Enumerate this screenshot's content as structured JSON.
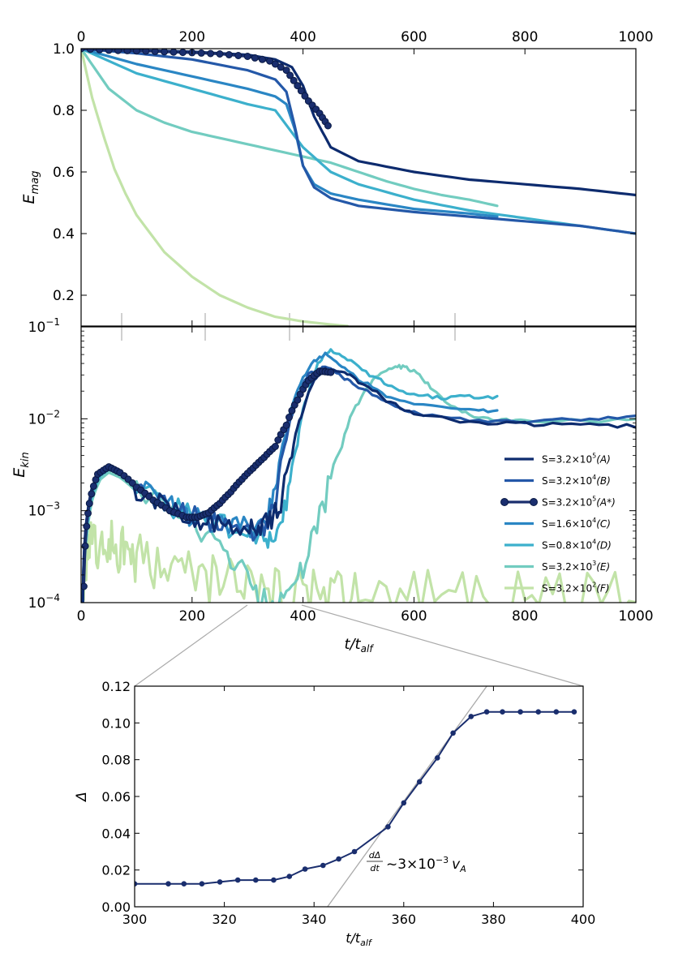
{
  "chart_data": [
    {
      "id": "top",
      "type": "line",
      "ylabel": "E",
      "ylabel_sub": "mag",
      "xlim": [
        0,
        1000
      ],
      "ylim": [
        0.1,
        1.0
      ],
      "x_ticks": [
        "0",
        "200",
        "400",
        "600",
        "800",
        "1000"
      ],
      "x_tick_values": [
        0,
        200,
        400,
        600,
        800,
        1000
      ],
      "y_ticks": [
        "0.2",
        "0.4",
        "0.6",
        "0.8",
        "1.0"
      ],
      "y_tick_values": [
        0.2,
        0.4,
        0.6,
        0.8,
        1.0
      ],
      "series": [
        {
          "key": "A",
          "color": "#0d2b6e",
          "marker": false,
          "x": [
            0,
            100,
            200,
            300,
            350,
            380,
            400,
            420,
            450,
            500,
            600,
            700,
            800,
            900,
            1000
          ],
          "y": [
            1.0,
            0.995,
            0.99,
            0.98,
            0.965,
            0.94,
            0.88,
            0.78,
            0.68,
            0.635,
            0.6,
            0.575,
            0.56,
            0.545,
            0.525
          ]
        },
        {
          "key": "B",
          "color": "#2458a8",
          "marker": false,
          "x": [
            0,
            100,
            200,
            300,
            350,
            370,
            385,
            400,
            420,
            450,
            500,
            600,
            700,
            800,
            900,
            1000
          ],
          "y": [
            1.0,
            0.985,
            0.965,
            0.93,
            0.9,
            0.86,
            0.75,
            0.62,
            0.55,
            0.515,
            0.49,
            0.47,
            0.455,
            0.44,
            0.425,
            0.4
          ]
        },
        {
          "key": "A*",
          "color": "#1a2e6e",
          "marker": true,
          "x": [
            0,
            50,
            100,
            150,
            200,
            250,
            300,
            340,
            370,
            390,
            410,
            430,
            445
          ],
          "y": [
            1.0,
            0.995,
            0.993,
            0.99,
            0.987,
            0.983,
            0.975,
            0.96,
            0.93,
            0.88,
            0.83,
            0.79,
            0.75
          ]
        },
        {
          "key": "C",
          "color": "#2a86c4",
          "marker": false,
          "x": [
            0,
            100,
            200,
            300,
            350,
            370,
            385,
            400,
            420,
            450,
            500,
            600,
            700,
            750
          ],
          "y": [
            1.0,
            0.95,
            0.91,
            0.87,
            0.845,
            0.82,
            0.74,
            0.62,
            0.56,
            0.53,
            0.51,
            0.48,
            0.465,
            0.455
          ]
        },
        {
          "key": "D",
          "color": "#3cb0cc",
          "marker": false,
          "x": [
            0,
            100,
            200,
            300,
            350,
            400,
            450,
            500,
            600,
            700,
            800,
            900,
            1000
          ],
          "y": [
            1.0,
            0.92,
            0.87,
            0.82,
            0.8,
            0.68,
            0.6,
            0.56,
            0.51,
            0.475,
            0.45,
            0.425,
            0.4
          ]
        },
        {
          "key": "E",
          "color": "#72ccc0",
          "marker": false,
          "x": [
            0,
            50,
            100,
            150,
            200,
            300,
            400,
            450,
            500,
            550,
            600,
            650,
            700,
            750
          ],
          "y": [
            1.0,
            0.87,
            0.8,
            0.76,
            0.73,
            0.69,
            0.65,
            0.63,
            0.6,
            0.57,
            0.545,
            0.525,
            0.51,
            0.49
          ]
        },
        {
          "key": "F",
          "color": "#c2e3a8",
          "marker": false,
          "x": [
            0,
            20,
            40,
            60,
            80,
            100,
            150,
            200,
            250,
            300,
            350,
            400,
            450,
            480
          ],
          "y": [
            1.0,
            0.84,
            0.72,
            0.61,
            0.53,
            0.46,
            0.34,
            0.26,
            0.2,
            0.16,
            0.13,
            0.115,
            0.105,
            0.1
          ]
        }
      ]
    },
    {
      "id": "middle",
      "type": "line",
      "ylabel": "E",
      "ylabel_sub": "kin",
      "yscale": "log",
      "xlabel": "t/t",
      "xlabel_sub": "alf",
      "xlim": [
        0,
        1000
      ],
      "ylim": [
        0.0001,
        0.1
      ],
      "x_ticks": [
        "0",
        "200",
        "400",
        "600",
        "800",
        "1000"
      ],
      "x_tick_values": [
        0,
        200,
        400,
        600,
        800,
        1000
      ],
      "y_ticks": [
        "10",
        "10",
        "10",
        "10"
      ],
      "y_ticks_exp": [
        "−4",
        "−3",
        "−2",
        "−1"
      ],
      "y_tick_values": [
        0.0001,
        0.001,
        0.01,
        0.1
      ],
      "legend_position": "right",
      "legend": [
        {
          "key": "A",
          "label": "S=3.2×10",
          "exp": "5",
          "tag": "(A)"
        },
        {
          "key": "B",
          "label": "S=3.2×10",
          "exp": "4",
          "tag": "(B)"
        },
        {
          "key": "A*",
          "label": "S=3.2×10",
          "exp": "5",
          "tag": "(A*)"
        },
        {
          "key": "C",
          "label": "S=1.6×10",
          "exp": "4",
          "tag": "(C)"
        },
        {
          "key": "D",
          "label": "S=0.8×10",
          "exp": "4",
          "tag": "(D)"
        },
        {
          "key": "E",
          "label": "S=3.2×10",
          "exp": "3",
          "tag": "(E)"
        },
        {
          "key": "F",
          "label": "S=3.2×10",
          "exp": "2",
          "tag": "(F)"
        }
      ],
      "series": [
        {
          "key": "A",
          "color": "#0d2b6e",
          "marker": false,
          "x": [
            3,
            10,
            20,
            35,
            50,
            70,
            100,
            150,
            190,
            220,
            260,
            300,
            320,
            340,
            360,
            380,
            400,
            420,
            440,
            470,
            500,
            550,
            600,
            700,
            800,
            900,
            1000
          ],
          "y": [
            0.0001,
            0.0008,
            0.0018,
            0.0026,
            0.0029,
            0.0025,
            0.0017,
            0.00115,
            0.0009,
            0.0008,
            0.00075,
            0.0007,
            0.0007,
            0.00075,
            0.0012,
            0.004,
            0.012,
            0.026,
            0.034,
            0.033,
            0.025,
            0.016,
            0.011,
            0.0092,
            0.0088,
            0.0085,
            0.0083
          ]
        },
        {
          "key": "B",
          "color": "#2458a8",
          "marker": false,
          "x": [
            3,
            10,
            20,
            35,
            50,
            70,
            100,
            150,
            190,
            220,
            260,
            300,
            330,
            350,
            370,
            390,
            410,
            440,
            470,
            500,
            550,
            600,
            700,
            800,
            900,
            1000
          ],
          "y": [
            0.0001,
            0.0008,
            0.0018,
            0.0027,
            0.003,
            0.0026,
            0.0018,
            0.0012,
            0.00095,
            0.00075,
            0.0007,
            0.0006,
            0.00065,
            0.0012,
            0.006,
            0.016,
            0.03,
            0.037,
            0.029,
            0.022,
            0.015,
            0.0115,
            0.0095,
            0.0093,
            0.0098,
            0.0105
          ]
        },
        {
          "key": "A*",
          "color": "#1a2e6e",
          "marker": true,
          "x": [
            5,
            15,
            30,
            50,
            70,
            100,
            130,
            160,
            190,
            210,
            230,
            250,
            270,
            290,
            310,
            330,
            350,
            370,
            390,
            410,
            430,
            450
          ],
          "y": [
            0.00015,
            0.0012,
            0.0025,
            0.003,
            0.0026,
            0.0018,
            0.0013,
            0.001,
            0.00085,
            0.00085,
            0.00095,
            0.0012,
            0.0016,
            0.0022,
            0.0029,
            0.0038,
            0.005,
            0.0085,
            0.016,
            0.026,
            0.033,
            0.032
          ]
        },
        {
          "key": "C",
          "color": "#2a86c4",
          "marker": false,
          "x": [
            3,
            10,
            20,
            35,
            50,
            70,
            100,
            150,
            190,
            220,
            260,
            300,
            330,
            350,
            370,
            390,
            420,
            440,
            470,
            500,
            550,
            600,
            700,
            750
          ],
          "y": [
            0.0001,
            0.0007,
            0.0017,
            0.0026,
            0.003,
            0.0026,
            0.0018,
            0.0012,
            0.00092,
            0.0008,
            0.00072,
            0.00065,
            0.0007,
            0.0015,
            0.007,
            0.02,
            0.042,
            0.05,
            0.038,
            0.027,
            0.018,
            0.014,
            0.0125,
            0.012
          ]
        },
        {
          "key": "D",
          "color": "#3cb0cc",
          "marker": false,
          "x": [
            3,
            10,
            20,
            35,
            50,
            70,
            100,
            150,
            200,
            250,
            300,
            330,
            350,
            370,
            390,
            410,
            430,
            450,
            480,
            520,
            560,
            600,
            650,
            700,
            750
          ],
          "y": [
            0.0001,
            0.0006,
            0.0015,
            0.0024,
            0.0028,
            0.0025,
            0.0018,
            0.0012,
            0.00085,
            0.0007,
            0.0006,
            0.00045,
            0.0005,
            0.0011,
            0.005,
            0.02,
            0.043,
            0.055,
            0.045,
            0.03,
            0.022,
            0.018,
            0.017,
            0.0175,
            0.0172
          ]
        },
        {
          "key": "E",
          "color": "#72ccc0",
          "marker": false,
          "x": [
            3,
            10,
            20,
            35,
            50,
            70,
            100,
            150,
            200,
            250,
            290,
            320,
            350,
            380,
            410,
            440,
            470,
            500,
            530,
            560,
            580,
            600,
            630,
            660,
            700,
            750,
            800,
            900,
            1000
          ],
          "y": [
            0.0001,
            0.0005,
            0.0013,
            0.0022,
            0.0026,
            0.0023,
            0.0016,
            0.0011,
            0.0007,
            0.0004,
            0.00022,
            0.00012,
            0.0001,
            0.00012,
            0.0003,
            0.0012,
            0.005,
            0.015,
            0.028,
            0.036,
            0.037,
            0.033,
            0.022,
            0.015,
            0.011,
            0.0098,
            0.0095,
            0.0095,
            0.0096
          ]
        },
        {
          "key": "F",
          "color": "#c2e3a8",
          "marker": false,
          "noise": true,
          "x": [
            3,
            10,
            20,
            40,
            60,
            80,
            100,
            150,
            200,
            250,
            300,
            350,
            400,
            450,
            500,
            600,
            700,
            800,
            900,
            1000
          ],
          "y": [
            0.0001,
            0.00035,
            0.00042,
            0.00045,
            0.00042,
            0.00035,
            0.0003,
            0.00024,
            0.0002,
            0.00017,
            0.00015,
            0.000135,
            0.00013,
            0.000125,
            0.00012,
            0.00012,
            0.00012,
            0.00012,
            0.00012,
            0.00012
          ]
        }
      ]
    },
    {
      "id": "inset",
      "type": "line",
      "ylabel": "Δ",
      "xlabel": "t/t",
      "xlabel_sub": "alf",
      "xlim": [
        300,
        400
      ],
      "ylim": [
        0.0,
        0.12
      ],
      "x_ticks": [
        "300",
        "320",
        "340",
        "360",
        "380",
        "400"
      ],
      "x_tick_values": [
        300,
        320,
        340,
        360,
        380,
        400
      ],
      "y_ticks": [
        "0.00",
        "0.02",
        "0.04",
        "0.06",
        "0.08",
        "0.10",
        "0.12"
      ],
      "y_tick_values": [
        0.0,
        0.02,
        0.04,
        0.06,
        0.08,
        0.1,
        0.12
      ],
      "annotation": "~3×10",
      "annotation_exp": "−3",
      "annotation_v": "v",
      "annotation_v_sub": "A",
      "annotation_frac_num": "dΔ",
      "annotation_frac_den": "dt",
      "fit_line": {
        "x": [
          343,
          380
        ],
        "y": [
          0.0,
          0.125
        ]
      },
      "series": [
        {
          "key": "A*",
          "color": "#1a2e6e",
          "marker": true,
          "x": [
            300,
            307.5,
            311,
            315,
            319,
            323,
            327,
            331,
            334.5,
            338,
            342,
            345.5,
            349,
            356.5,
            360,
            363.5,
            367.5,
            371,
            375,
            378.5,
            382,
            386,
            390,
            394,
            398
          ],
          "y": [
            0.0125,
            0.0125,
            0.0125,
            0.0125,
            0.0135,
            0.0145,
            0.0145,
            0.0145,
            0.0165,
            0.0205,
            0.0225,
            0.026,
            0.03,
            0.0435,
            0.0565,
            0.068,
            0.081,
            0.0945,
            0.1035,
            0.106,
            0.106,
            0.106,
            0.106,
            0.106,
            0.106
          ]
        }
      ]
    }
  ]
}
